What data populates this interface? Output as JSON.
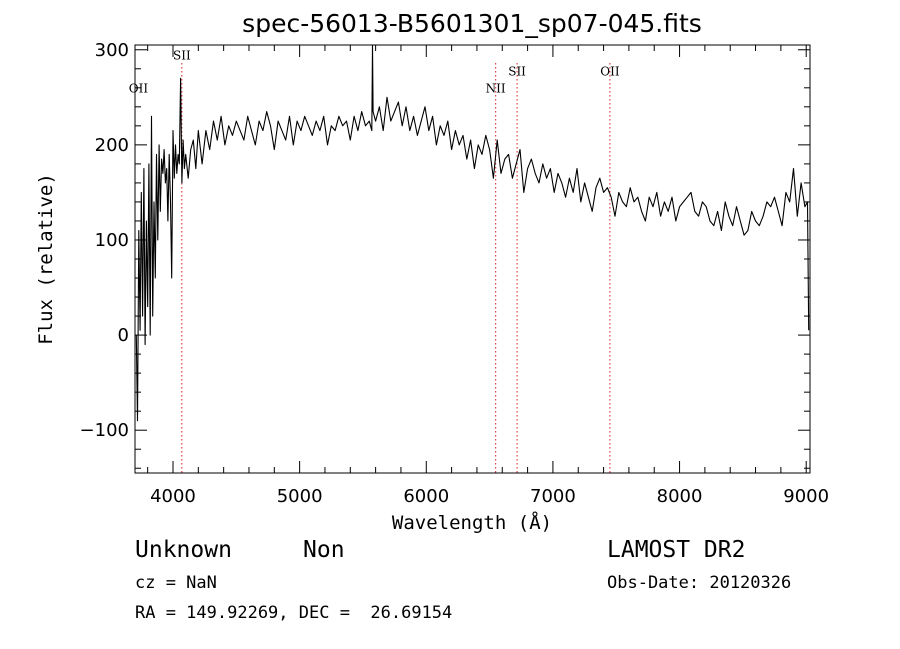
{
  "chart_data": {
    "type": "line",
    "title": "spec-56013-B5601301_sp07-045.fits",
    "xlabel": "Wavelength (Å)",
    "ylabel": "Flux (relative)",
    "xlim": [
      3700,
      9030
    ],
    "ylim": [
      -145,
      305
    ],
    "xticks": [
      4000,
      5000,
      6000,
      7000,
      8000,
      9000
    ],
    "yticks": [
      -100,
      0,
      100,
      200,
      300
    ],
    "series": [
      {
        "color": "#000000",
        "x": [
          3710,
          3720,
          3730,
          3740,
          3750,
          3760,
          3770,
          3780,
          3790,
          3800,
          3810,
          3820,
          3830,
          3840,
          3850,
          3860,
          3870,
          3880,
          3890,
          3900,
          3910,
          3920,
          3930,
          3940,
          3950,
          3960,
          3970,
          3980,
          3990,
          4000,
          4010,
          4020,
          4030,
          4040,
          4050,
          4060,
          4070,
          4080,
          4090,
          4100,
          4120,
          4140,
          4160,
          4180,
          4200,
          4230,
          4260,
          4290,
          4320,
          4350,
          4380,
          4410,
          4440,
          4470,
          4500,
          4530,
          4560,
          4590,
          4620,
          4650,
          4680,
          4710,
          4740,
          4770,
          4800,
          4830,
          4860,
          4890,
          4920,
          4950,
          4980,
          5010,
          5040,
          5070,
          5100,
          5130,
          5160,
          5190,
          5220,
          5250,
          5280,
          5310,
          5340,
          5370,
          5400,
          5430,
          5460,
          5490,
          5520,
          5550,
          5570,
          5575,
          5580,
          5600,
          5630,
          5660,
          5690,
          5720,
          5750,
          5780,
          5810,
          5840,
          5870,
          5900,
          5930,
          5960,
          5990,
          6020,
          6050,
          6080,
          6110,
          6140,
          6170,
          6200,
          6230,
          6260,
          6290,
          6320,
          6350,
          6380,
          6410,
          6440,
          6470,
          6500,
          6530,
          6560,
          6590,
          6620,
          6650,
          6680,
          6710,
          6740,
          6770,
          6800,
          6830,
          6860,
          6890,
          6920,
          6950,
          6980,
          7010,
          7040,
          7070,
          7100,
          7130,
          7160,
          7190,
          7220,
          7250,
          7280,
          7310,
          7340,
          7370,
          7400,
          7430,
          7460,
          7490,
          7520,
          7550,
          7580,
          7610,
          7640,
          7670,
          7700,
          7730,
          7760,
          7790,
          7820,
          7850,
          7880,
          7910,
          7940,
          7970,
          8000,
          8030,
          8060,
          8090,
          8120,
          8150,
          8180,
          8210,
          8240,
          8270,
          8300,
          8330,
          8360,
          8390,
          8420,
          8450,
          8480,
          8510,
          8540,
          8570,
          8600,
          8630,
          8660,
          8690,
          8720,
          8750,
          8780,
          8810,
          8840,
          8870,
          8900,
          8930,
          8960,
          8990,
          9010,
          9020
        ],
        "y": [
          0,
          -90,
          110,
          5,
          150,
          20,
          175,
          -10,
          120,
          30,
          180,
          0,
          230,
          20,
          140,
          60,
          190,
          100,
          200,
          130,
          185,
          170,
          195,
          160,
          175,
          120,
          190,
          140,
          60,
          215,
          165,
          200,
          170,
          190,
          180,
          270,
          160,
          205,
          175,
          190,
          165,
          195,
          205,
          175,
          215,
          180,
          215,
          195,
          225,
          205,
          230,
          200,
          220,
          210,
          225,
          215,
          205,
          230,
          215,
          200,
          225,
          215,
          235,
          220,
          195,
          225,
          215,
          205,
          230,
          200,
          225,
          215,
          230,
          220,
          210,
          225,
          215,
          230,
          200,
          220,
          215,
          230,
          220,
          225,
          205,
          230,
          215,
          235,
          220,
          225,
          215,
          305,
          235,
          225,
          240,
          215,
          250,
          225,
          235,
          245,
          220,
          240,
          215,
          230,
          210,
          225,
          240,
          215,
          230,
          200,
          220,
          210,
          225,
          195,
          215,
          200,
          210,
          185,
          205,
          175,
          200,
          190,
          210,
          195,
          165,
          205,
          170,
          185,
          190,
          165,
          180,
          195,
          150,
          175,
          185,
          170,
          160,
          180,
          165,
          175,
          150,
          170,
          160,
          145,
          165,
          150,
          175,
          140,
          160,
          145,
          130,
          155,
          165,
          150,
          155,
          145,
          125,
          150,
          140,
          135,
          155,
          140,
          145,
          130,
          120,
          145,
          135,
          150,
          125,
          140,
          130,
          145,
          120,
          135,
          140,
          145,
          150,
          130,
          125,
          140,
          135,
          120,
          115,
          130,
          110,
          140,
          125,
          115,
          135,
          120,
          105,
          110,
          130,
          120,
          115,
          125,
          140,
          135,
          145,
          130,
          115,
          150,
          140,
          175,
          125,
          160,
          135,
          140,
          5
        ]
      }
    ],
    "line_markers": [
      {
        "label": "OII",
        "x": 3727,
        "drawn": false,
        "label_flux": 255
      },
      {
        "label": "SII",
        "x": 4070,
        "drawn": true,
        "label_flux": 290
      },
      {
        "label": "NII",
        "x": 6548,
        "drawn": true,
        "label_flux": 255
      },
      {
        "label": "SII",
        "x": 6717,
        "drawn": true,
        "label_flux": 273
      },
      {
        "label": "OII",
        "x": 7450,
        "drawn": true,
        "label_flux": 273
      }
    ],
    "grid": false
  },
  "info": {
    "object_type": "Unknown",
    "object_subtype": "Non",
    "survey": "LAMOST DR2",
    "cz": "cz = NaN",
    "obs_date": "Obs-Date: 20120326",
    "coords": "RA = 149.92269, DEC =  26.69154"
  }
}
